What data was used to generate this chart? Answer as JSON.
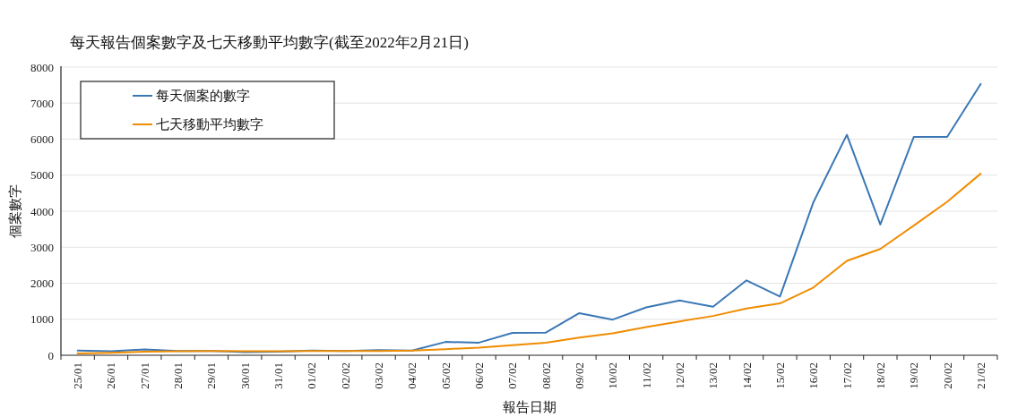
{
  "chart_data": {
    "type": "line",
    "title": "每天報告個案數字及七天移動平均數字(截至2022年2月21日)",
    "xlabel": "報告日期",
    "ylabel": "個案數字",
    "categories": [
      "25/01",
      "26/01",
      "27/01",
      "28/01",
      "29/01",
      "30/01",
      "31/01",
      "01/02",
      "02/02",
      "03/02",
      "04/02",
      "05/02",
      "06/02",
      "07/02",
      "08/02",
      "09/02",
      "10/02",
      "11/02",
      "12/02",
      "13/02",
      "14/02",
      "15/02",
      "16/02",
      "17/02",
      "18/02",
      "19/02",
      "20/02",
      "21/02"
    ],
    "series": [
      {
        "name": "每天個案的數字",
        "color": "#3a78b5",
        "values": [
          130,
          110,
          160,
          120,
          120,
          90,
          100,
          130,
          120,
          140,
          130,
          370,
          350,
          620,
          630,
          1170,
          990,
          1330,
          1520,
          1350,
          2080,
          1630,
          4250,
          6120,
          3630,
          6060,
          6060,
          7530
        ]
      },
      {
        "name": "七天移動平均數字",
        "color": "#f08c00",
        "values": [
          50,
          70,
          100,
          110,
          120,
          110,
          110,
          120,
          120,
          120,
          130,
          170,
          210,
          280,
          350,
          490,
          610,
          780,
          940,
          1090,
          1300,
          1440,
          1880,
          2620,
          2950,
          3600,
          4260,
          5040
        ]
      }
    ],
    "ylim": [
      0,
      8000
    ],
    "yticks": [
      0,
      1000,
      2000,
      3000,
      4000,
      5000,
      6000,
      7000,
      8000
    ],
    "grid": "y",
    "legend": "top left",
    "marker": "none",
    "line_style": "solid"
  }
}
